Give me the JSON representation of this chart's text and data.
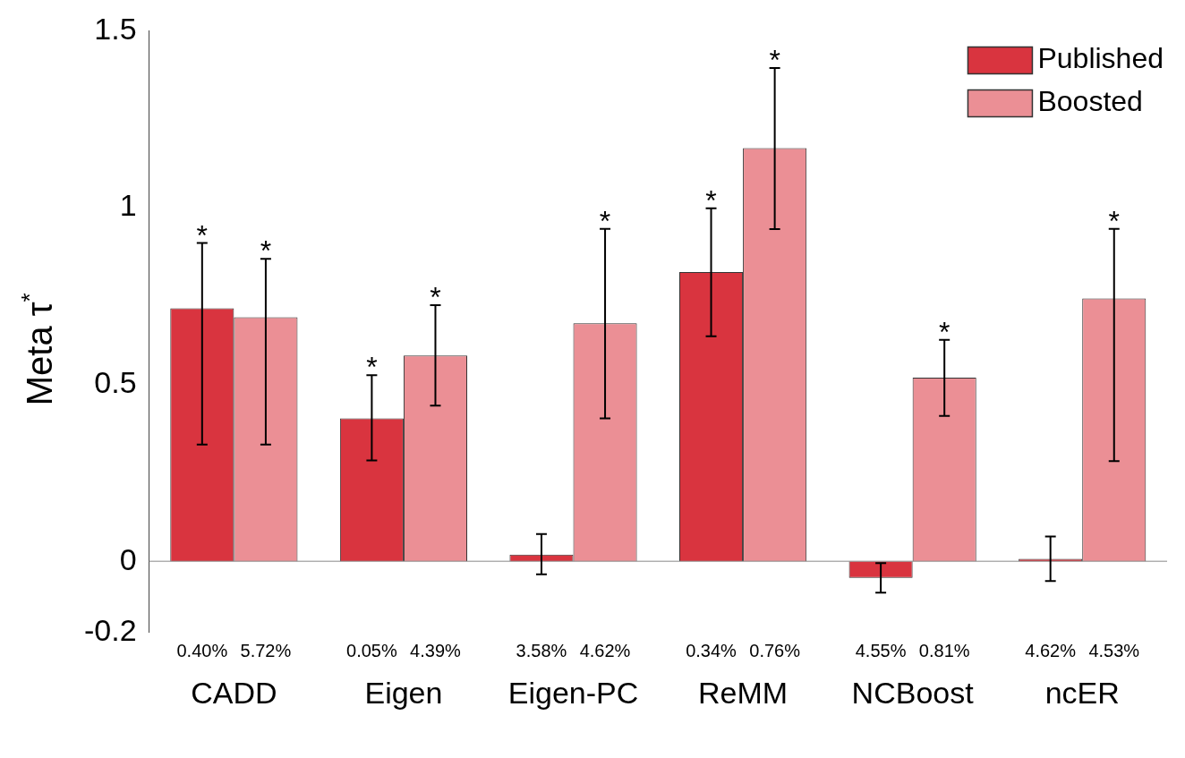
{
  "chart_data": {
    "type": "bar",
    "ylabel": "Meta τ$^{*}$",
    "categories": [
      "CADD",
      "Eigen",
      "Eigen-PC",
      "ReMM",
      "NCBoost",
      "ncER"
    ],
    "series": [
      {
        "name": "Published",
        "color": "#d9343f",
        "values": [
          0.715,
          0.404,
          0.019,
          0.818,
          -0.047,
          0.007
        ],
        "errors": [
          [
            0.33,
            0.9
          ],
          [
            0.285,
            0.526
          ],
          [
            -0.037,
            0.077
          ],
          [
            0.636,
            0.998
          ],
          [
            -0.089,
            -0.005
          ],
          [
            -0.056,
            0.07
          ]
        ]
      },
      {
        "name": "Boosted",
        "color": "#eb8f95",
        "values": [
          0.69,
          0.582,
          0.673,
          1.168,
          0.519,
          0.743
        ],
        "errors": [
          [
            0.33,
            0.855
          ],
          [
            0.44,
            0.724
          ],
          [
            0.404,
            0.94
          ],
          [
            0.939,
            1.395
          ],
          [
            0.411,
            0.626
          ],
          [
            0.283,
            0.94
          ]
        ]
      }
    ],
    "ylim": [
      -0.2,
      1.5
    ],
    "yticks": [
      -0.2,
      0,
      0.5,
      1,
      1.5
    ],
    "grid": false,
    "legend": "top right",
    "ref_lines": [
      {
        "axis": "y",
        "value": 0,
        "color": "#888888"
      }
    ],
    "annotations": [
      "*",
      "*",
      "*",
      "*",
      "*",
      "*",
      "*",
      "*",
      "*",
      "0.40%",
      "5.72%",
      "0.05%",
      "4.39%",
      "3.58%",
      "4.62%",
      "0.34%",
      "0.76%",
      "4.55%",
      "0.81%",
      "4.62%",
      "4.53%"
    ]
  }
}
